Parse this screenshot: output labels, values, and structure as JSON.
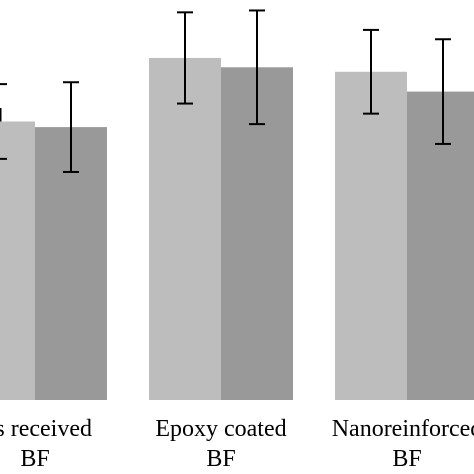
{
  "chart_data": {
    "type": "bar",
    "categories": [
      {
        "line1": "As received",
        "line2": "BF"
      },
      {
        "line1": "Epoxy coated",
        "line2": "BF"
      },
      {
        "line1": "Nanoreinforced",
        "line2": "BF"
      }
    ],
    "series": [
      {
        "color": "#bdbdbd",
        "values": [
          74.5,
          91.5,
          87.8
        ],
        "errors": [
          10.0,
          12.2,
          11.2
        ]
      },
      {
        "color": "#999999",
        "values": [
          73.0,
          89.0,
          82.5
        ],
        "errors": [
          12.0,
          15.2,
          14.0
        ]
      }
    ],
    "ylim": [
      0,
      107
    ],
    "grid": false,
    "legend": "none"
  }
}
